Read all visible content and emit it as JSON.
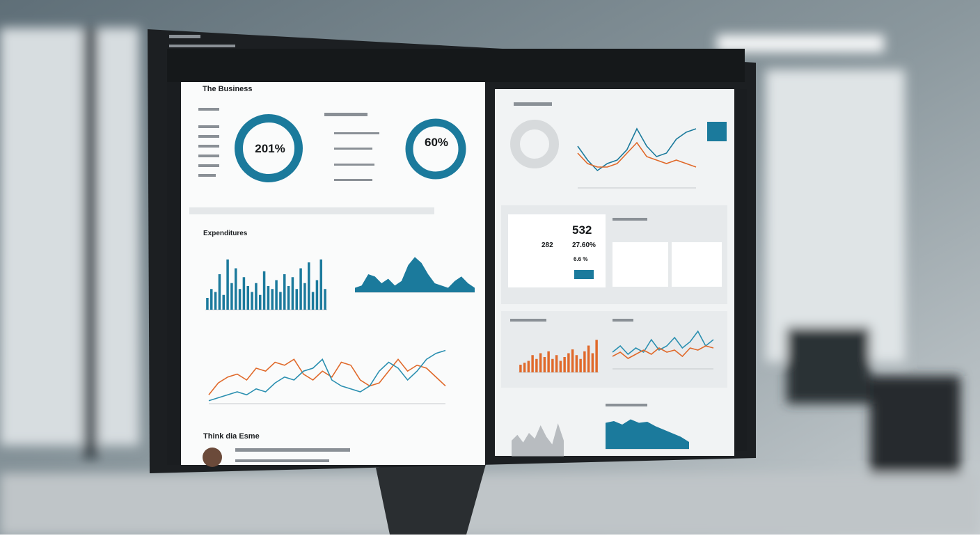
{
  "screen": {
    "left_title": "The Business",
    "kpi_left": "201%",
    "kpi_right": "60%",
    "section_expenditures": "Expenditures",
    "section_footer": "Think dia Esme",
    "card_value": "532",
    "card_small_a": "282",
    "card_small_b": "27.60%",
    "card_small_c": "6.6 %"
  },
  "charts": [
    {
      "type": "bar",
      "color": "#1b7a9c",
      "ylim": [
        0,
        100
      ],
      "values": [
        20,
        35,
        30,
        60,
        25,
        85,
        45,
        70,
        35,
        55,
        40,
        30,
        45,
        25,
        65,
        40,
        35,
        50,
        30,
        60,
        40,
        55,
        35,
        70,
        45,
        80,
        30,
        50,
        85,
        35
      ]
    },
    {
      "type": "area",
      "color": "#1b7a9c",
      "ylim": [
        0,
        100
      ],
      "values": [
        10,
        15,
        40,
        35,
        20,
        30,
        15,
        25,
        60,
        78,
        65,
        40,
        20,
        15,
        10,
        25,
        35,
        20,
        10
      ]
    },
    {
      "type": "line",
      "ylim": [
        0,
        100
      ],
      "series": [
        {
          "color": "#e0692a",
          "values": [
            15,
            35,
            45,
            50,
            40,
            60,
            55,
            70,
            65,
            75,
            50,
            40,
            55,
            45,
            70,
            65,
            40,
            30,
            35,
            55,
            75,
            55,
            65,
            60,
            45,
            30
          ]
        },
        {
          "color": "#2a8fb0",
          "values": [
            5,
            10,
            15,
            20,
            15,
            25,
            20,
            35,
            45,
            40,
            55,
            60,
            75,
            40,
            30,
            25,
            20,
            30,
            55,
            70,
            60,
            40,
            55,
            75,
            85,
            90
          ]
        }
      ]
    },
    {
      "type": "line",
      "ylim": [
        0,
        100
      ],
      "series": [
        {
          "color": "#1b7a9c",
          "values": [
            60,
            40,
            25,
            35,
            40,
            55,
            85,
            60,
            45,
            50,
            70,
            80,
            85
          ]
        },
        {
          "color": "#e0692a",
          "values": [
            50,
            35,
            30,
            30,
            35,
            50,
            65,
            45,
            40,
            35,
            40,
            35,
            30
          ]
        }
      ]
    },
    {
      "type": "bar",
      "color": "#e0692a",
      "ylim": [
        0,
        100
      ],
      "values": [
        20,
        25,
        30,
        45,
        35,
        50,
        40,
        55,
        35,
        45,
        30,
        40,
        50,
        60,
        45,
        35,
        55,
        70,
        50,
        85
      ]
    },
    {
      "type": "line",
      "ylim": [
        0,
        100
      ],
      "series": [
        {
          "color": "#2a8fb0",
          "values": [
            40,
            55,
            35,
            50,
            40,
            70,
            45,
            55,
            75,
            50,
            65,
            90,
            55,
            70
          ]
        },
        {
          "color": "#e0692a",
          "values": [
            30,
            40,
            25,
            35,
            45,
            35,
            50,
            40,
            45,
            30,
            50,
            45,
            55,
            50
          ]
        }
      ]
    },
    {
      "type": "area",
      "color": "#b8bcc0",
      "ylim": [
        0,
        100
      ],
      "values": [
        40,
        55,
        35,
        60,
        45,
        80,
        50,
        30,
        85,
        40
      ]
    },
    {
      "type": "area",
      "color": "#1b7a9c",
      "ylim": [
        0,
        100
      ],
      "values": [
        75,
        80,
        70,
        85,
        75,
        78,
        65,
        55,
        45,
        35,
        20
      ]
    }
  ]
}
